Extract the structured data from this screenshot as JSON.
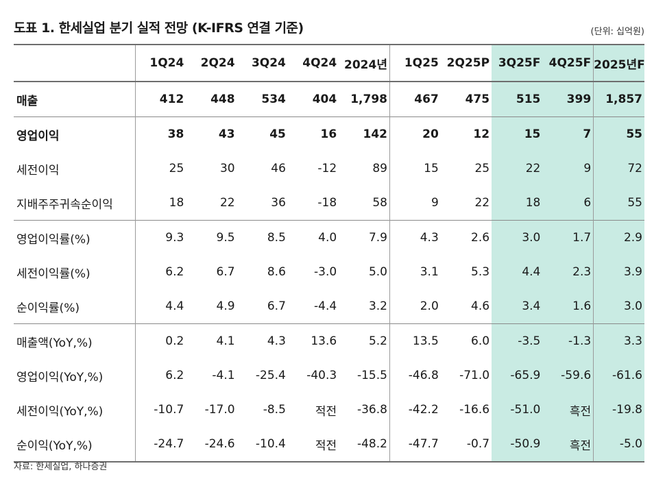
{
  "title": "도표 1. 한세실업 분기 실적 전망 (K-IFRS 연결 기준)",
  "unit": "(단위: 십억원)",
  "source": "자료: 한세실업, 하나증권",
  "columns": [
    "1Q24",
    "2Q24",
    "3Q24",
    "4Q24",
    "2024년",
    "1Q25",
    "2Q25P",
    "3Q25F",
    "4Q25F",
    "2025년F"
  ],
  "rows": [
    {
      "label": "매출",
      "values": [
        "412",
        "448",
        "534",
        "404",
        "1,798",
        "467",
        "475",
        "515",
        "399",
        "1,857"
      ],
      "bold": true
    },
    {
      "label": "영업이익",
      "values": [
        "38",
        "43",
        "45",
        "16",
        "142",
        "20",
        "12",
        "15",
        "7",
        "55"
      ],
      "bold": true
    },
    {
      "label": "세전이익",
      "values": [
        "25",
        "30",
        "46",
        "-12",
        "89",
        "15",
        "25",
        "22",
        "9",
        "72"
      ]
    },
    {
      "label": "지배주주귀속순이익",
      "values": [
        "18",
        "22",
        "36",
        "-18",
        "58",
        "9",
        "22",
        "18",
        "6",
        "55"
      ]
    },
    {
      "label": "영업이익률(%)",
      "values": [
        "9.3",
        "9.5",
        "8.5",
        "4.0",
        "7.9",
        "4.3",
        "2.6",
        "3.0",
        "1.7",
        "2.9"
      ]
    },
    {
      "label": "세전이익률(%)",
      "values": [
        "6.2",
        "6.7",
        "8.6",
        "-3.0",
        "5.0",
        "3.1",
        "5.3",
        "4.4",
        "2.3",
        "3.9"
      ]
    },
    {
      "label": "순이익률(%)",
      "values": [
        "4.4",
        "4.9",
        "6.7",
        "-4.4",
        "3.2",
        "2.0",
        "4.6",
        "3.4",
        "1.6",
        "3.0"
      ]
    },
    {
      "label": "매출액(YoY,%)",
      "values": [
        "0.2",
        "4.1",
        "4.3",
        "13.6",
        "5.2",
        "13.5",
        "6.0",
        "-3.5",
        "-1.3",
        "3.3"
      ]
    },
    {
      "label": "영업이익(YoY,%)",
      "values": [
        "6.2",
        "-4.1",
        "-25.4",
        "-40.3",
        "-15.5",
        "-46.8",
        "-71.0",
        "-65.9",
        "-59.6",
        "-61.6"
      ]
    },
    {
      "label": "세전이익(YoY,%)",
      "values": [
        "-10.7",
        "-17.0",
        "-8.5",
        "적전",
        "-36.8",
        "-42.2",
        "-16.6",
        "-51.0",
        "흑전",
        "-19.8"
      ]
    },
    {
      "label": "순이익(YoY,%)",
      "values": [
        "-24.7",
        "-24.6",
        "-10.4",
        "적전",
        "-48.2",
        "-47.7",
        "-0.7",
        "-50.9",
        "흑전",
        "-5.0"
      ]
    }
  ],
  "colors": {
    "forecast_bg": "#c9ebe3",
    "rule": "#6d6d6d"
  }
}
